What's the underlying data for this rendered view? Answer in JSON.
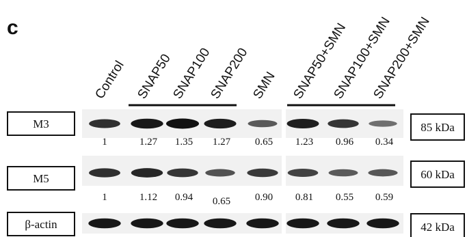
{
  "panel": {
    "letter": "c"
  },
  "lanes": [
    "Control",
    "SNAP50",
    "SNAP100",
    "SNAP200",
    "SMN",
    "SNAP50+SMN",
    "SNAP100+SMN",
    "SNAP200+SMN"
  ],
  "proteins": [
    {
      "name": "M3",
      "size": "85 kDa",
      "values": [
        "1",
        "1.27",
        "1.35",
        "1.27",
        "0.65",
        "1.23",
        "0.96",
        "0.34"
      ],
      "intensity": [
        0.78,
        0.95,
        1.0,
        0.92,
        0.5,
        0.9,
        0.75,
        0.35
      ]
    },
    {
      "name": "M5",
      "size": "60 kDa",
      "values": [
        "1",
        "1.12",
        "0.94",
        "0.65",
        "0.90",
        "0.81",
        "0.55",
        "0.59"
      ],
      "intensity": [
        0.8,
        0.85,
        0.75,
        0.55,
        0.72,
        0.66,
        0.5,
        0.52
      ]
    },
    {
      "name": "β-actin",
      "size": "42 kDa",
      "values": [],
      "intensity": [
        0.95,
        0.95,
        0.95,
        0.95,
        0.95,
        0.95,
        0.95,
        0.95
      ]
    }
  ],
  "colors": {
    "band": "#111111",
    "membrane": "#f1f1f1",
    "text": "#111111"
  }
}
